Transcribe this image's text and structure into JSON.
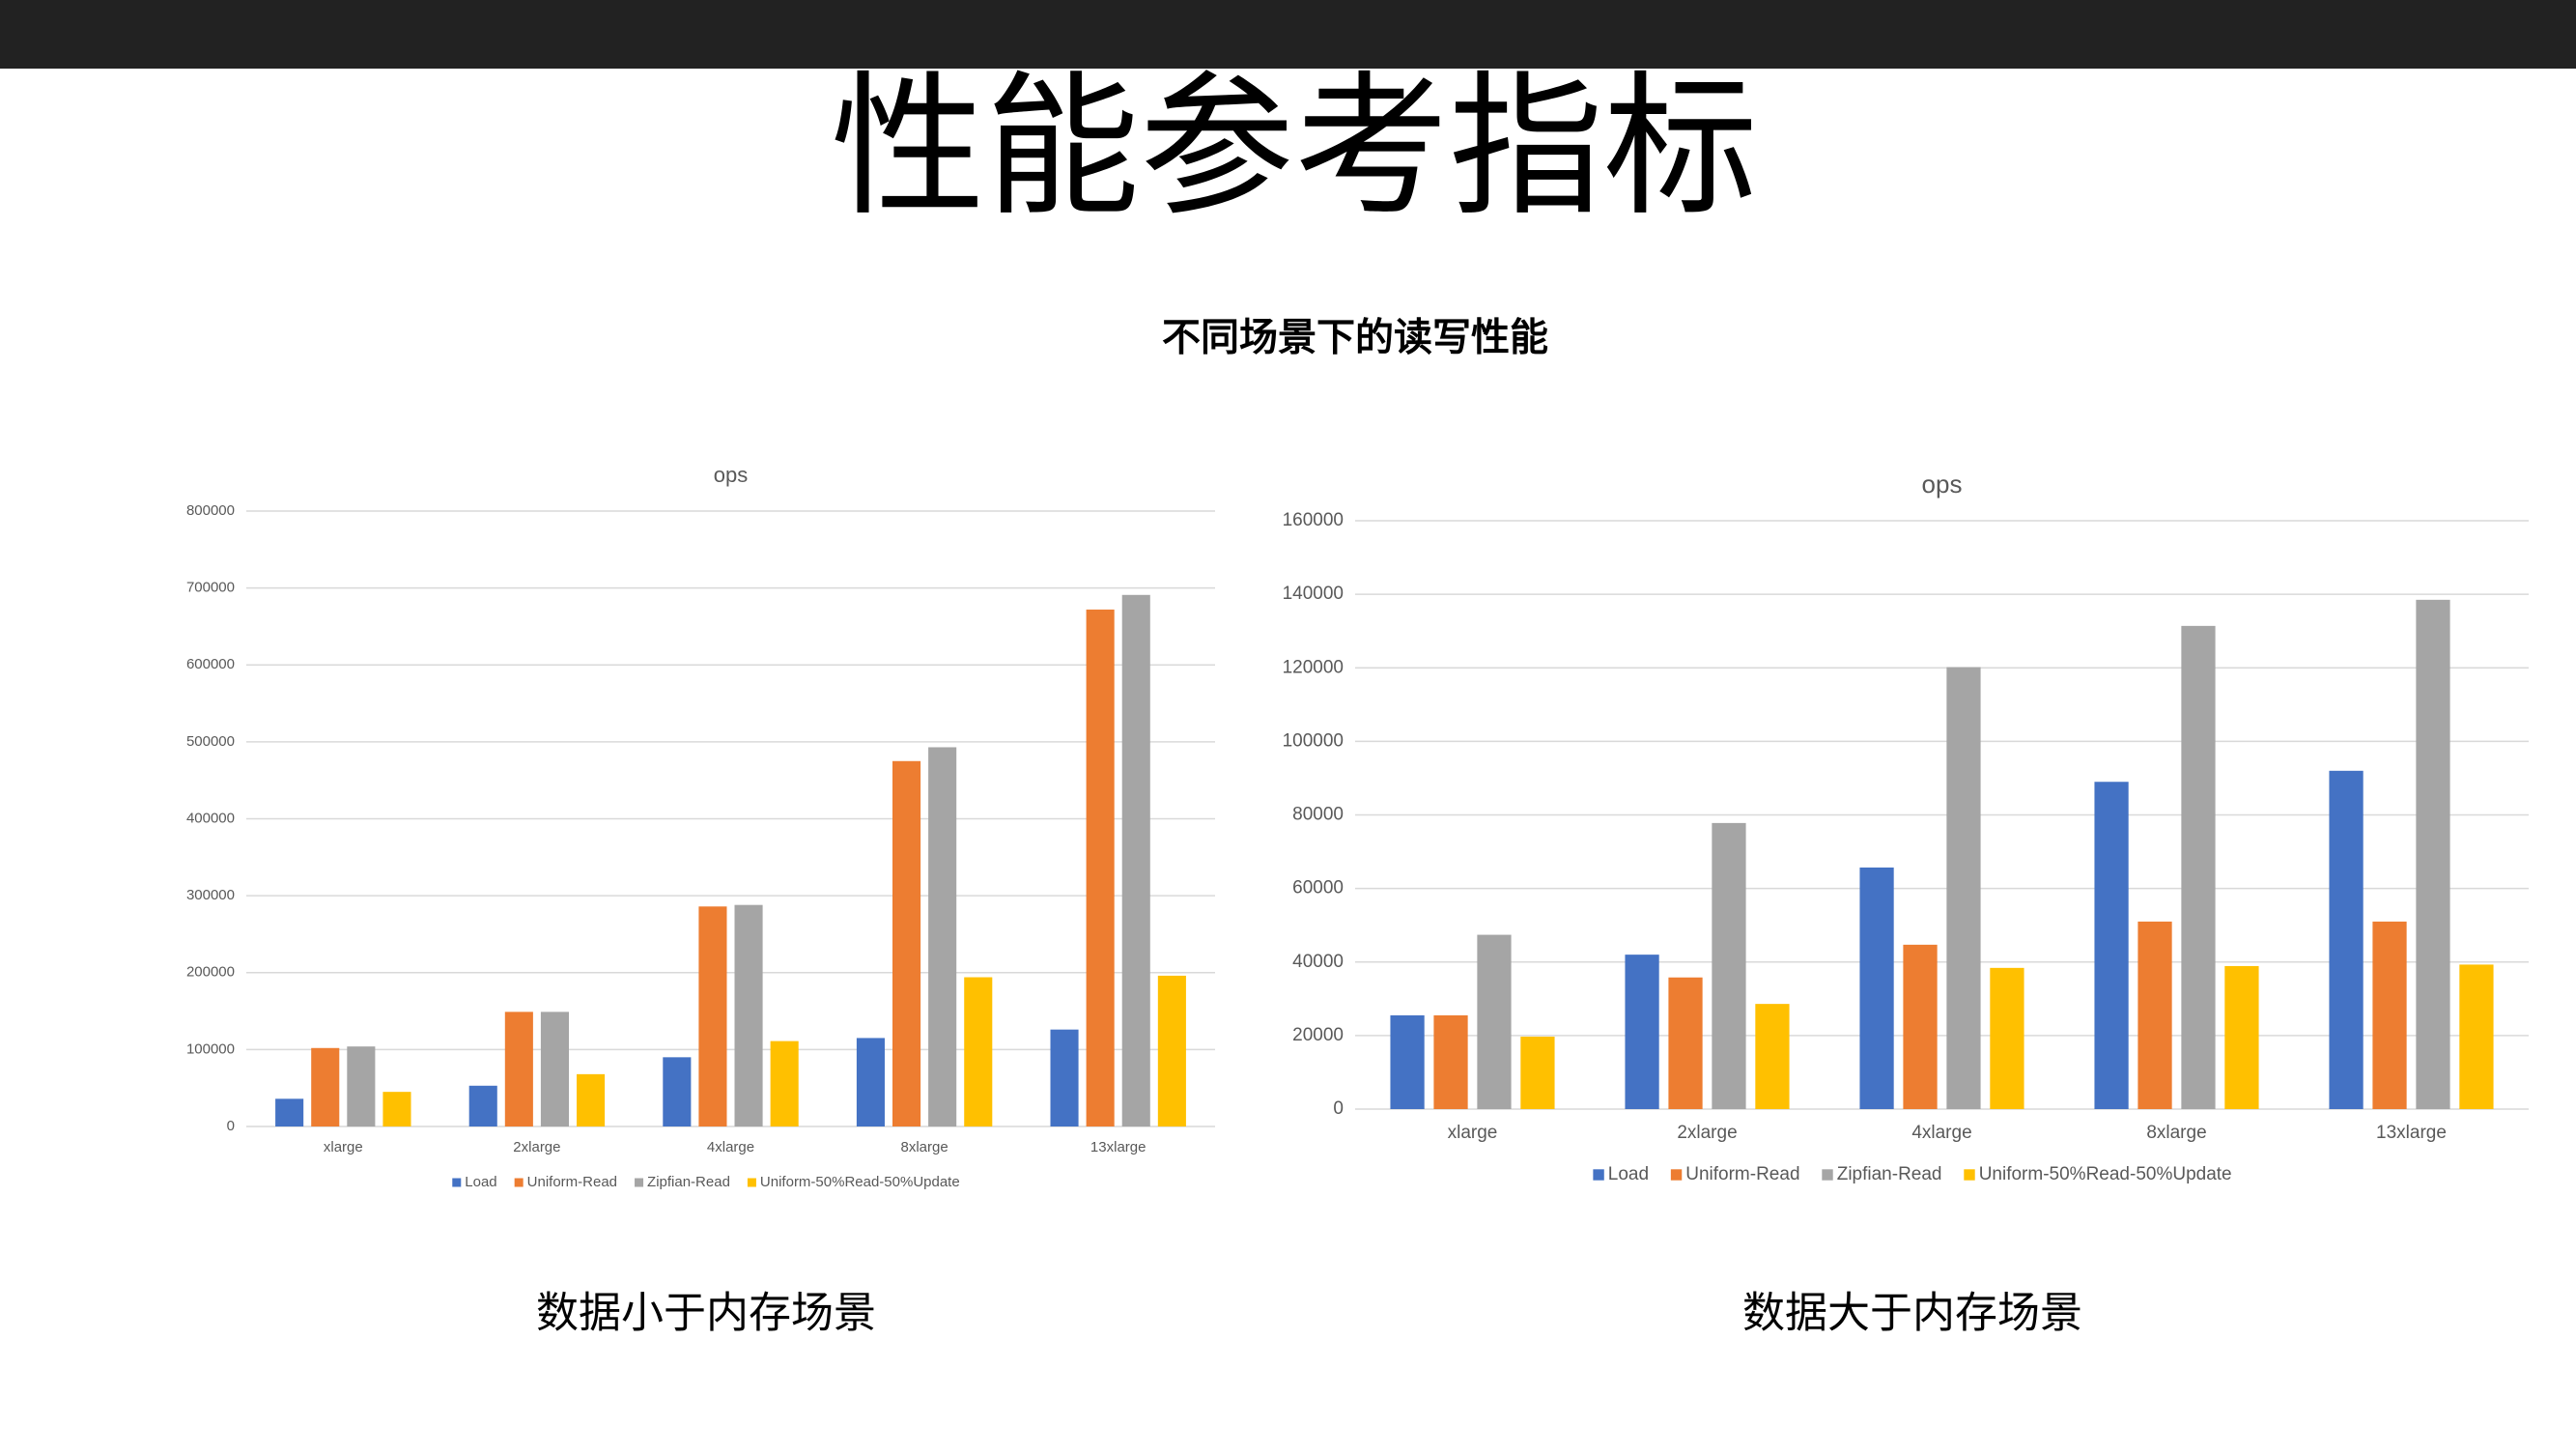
{
  "title": "性能参考指标",
  "subtitle": "不同场景下的读写性能",
  "chart_data": [
    {
      "type": "bar",
      "title": "ops",
      "caption": "数据小于内存场景",
      "categories": [
        "xlarge",
        "2xlarge",
        "4xlarge",
        "8xlarge",
        "13xlarge"
      ],
      "series": [
        {
          "name": "Load",
          "color": "#4472c4",
          "values": [
            36000,
            53000,
            90000,
            115000,
            126000
          ]
        },
        {
          "name": "Uniform-Read",
          "color": "#ed7d31",
          "values": [
            102000,
            149000,
            286000,
            475000,
            672000
          ]
        },
        {
          "name": "Zipfian-Read",
          "color": "#a5a5a5",
          "values": [
            104000,
            149000,
            288000,
            493000,
            691000
          ]
        },
        {
          "name": "Uniform-50%Read-50%Update",
          "color": "#ffc000",
          "values": [
            45000,
            68000,
            111000,
            194000,
            196000
          ]
        }
      ],
      "ylim": [
        0,
        800000
      ],
      "yticks": [
        0,
        100000,
        200000,
        300000,
        400000,
        500000,
        600000,
        700000,
        800000
      ],
      "grid": true,
      "legend": "bottom"
    },
    {
      "type": "bar",
      "title": "ops",
      "caption": "数据大于内存场景",
      "categories": [
        "xlarge",
        "2xlarge",
        "4xlarge",
        "8xlarge",
        "13xlarge"
      ],
      "series": [
        {
          "name": "Load",
          "color": "#4472c4",
          "values": [
            25500,
            42000,
            65700,
            89000,
            92000
          ]
        },
        {
          "name": "Uniform-Read",
          "color": "#ed7d31",
          "values": [
            25500,
            35800,
            44700,
            51000,
            51000
          ]
        },
        {
          "name": "Zipfian-Read",
          "color": "#a5a5a5",
          "values": [
            47400,
            77800,
            120200,
            131400,
            138500
          ]
        },
        {
          "name": "Uniform-50%Read-50%Update",
          "color": "#ffc000",
          "values": [
            19700,
            28600,
            38400,
            38900,
            39300
          ]
        }
      ],
      "ylim": [
        0,
        160000
      ],
      "yticks": [
        0,
        20000,
        40000,
        60000,
        80000,
        100000,
        120000,
        140000,
        160000
      ],
      "grid": true,
      "legend": "bottom"
    }
  ]
}
